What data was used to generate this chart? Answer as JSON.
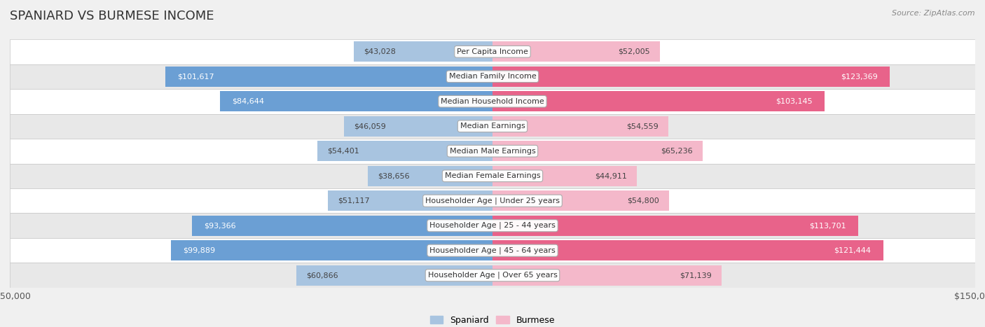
{
  "title": "SPANIARD VS BURMESE INCOME",
  "source": "Source: ZipAtlas.com",
  "categories": [
    "Per Capita Income",
    "Median Family Income",
    "Median Household Income",
    "Median Earnings",
    "Median Male Earnings",
    "Median Female Earnings",
    "Householder Age | Under 25 years",
    "Householder Age | 25 - 44 years",
    "Householder Age | 45 - 64 years",
    "Householder Age | Over 65 years"
  ],
  "spaniard_values": [
    43028,
    101617,
    84644,
    46059,
    54401,
    38656,
    51117,
    93366,
    99889,
    60866
  ],
  "burmese_values": [
    52005,
    123369,
    103145,
    54559,
    65236,
    44911,
    54800,
    113701,
    121444,
    71139
  ],
  "spaniard_labels": [
    "$43,028",
    "$101,617",
    "$84,644",
    "$46,059",
    "$54,401",
    "$38,656",
    "$51,117",
    "$93,366",
    "$99,889",
    "$60,866"
  ],
  "burmese_labels": [
    "$52,005",
    "$123,369",
    "$103,145",
    "$54,559",
    "$65,236",
    "$44,911",
    "$54,800",
    "$113,701",
    "$121,444",
    "$71,139"
  ],
  "spaniard_color_light": "#a8c4e0",
  "burmese_color_light": "#f4b8ca",
  "spaniard_color_solid": "#6b9fd4",
  "burmese_color_solid": "#e8638a",
  "spaniard_label_inside": [
    false,
    true,
    true,
    false,
    false,
    false,
    false,
    true,
    true,
    false
  ],
  "burmese_label_inside": [
    false,
    true,
    true,
    false,
    false,
    false,
    false,
    true,
    true,
    false
  ],
  "max_value": 150000,
  "bg_color": "#f0f0f0",
  "row_colors": [
    "#ffffff",
    "#e8e8e8",
    "#ffffff",
    "#e8e8e8",
    "#ffffff",
    "#e8e8e8",
    "#ffffff",
    "#e8e8e8",
    "#ffffff",
    "#e8e8e8"
  ],
  "title_fontsize": 13,
  "label_fontsize": 8,
  "category_fontsize": 8,
  "axis_label_fontsize": 9,
  "legend_fontsize": 9
}
